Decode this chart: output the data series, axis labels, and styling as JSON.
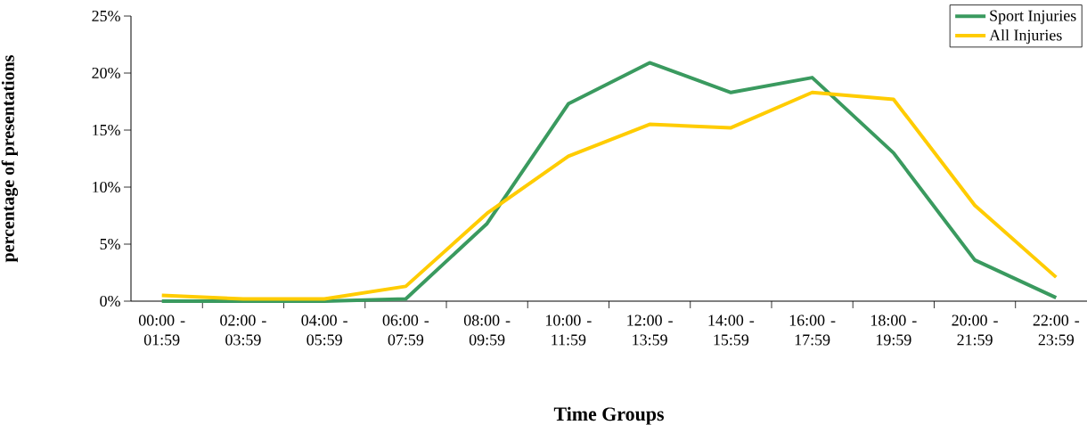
{
  "chart_data": {
    "type": "line",
    "xlabel": "Time Groups",
    "ylabel": "percentage of presentations",
    "categories": [
      "00:00 - 01:59",
      "02:00 - 03:59",
      "04:00 - 05:59",
      "06:00 - 07:59",
      "08:00 - 09:59",
      "10:00 - 11:59",
      "12:00 - 13:59",
      "14:00 - 15:59",
      "16:00 - 17:59",
      "18:00 - 19:59",
      "20:00 - 21:59",
      "22:00 - 23:59"
    ],
    "series": [
      {
        "name": "Sport Injuries",
        "color": "#3a9a5f",
        "values": [
          0,
          0,
          0,
          0.2,
          6.8,
          17.3,
          20.9,
          18.3,
          19.6,
          13.0,
          3.6,
          0.3
        ]
      },
      {
        "name": "All Injuries",
        "color": "#ffcc00",
        "values": [
          0.5,
          0.2,
          0.2,
          1.3,
          7.7,
          12.7,
          15.5,
          15.2,
          18.3,
          17.7,
          8.4,
          2.1
        ]
      }
    ],
    "ylim": [
      0,
      25
    ],
    "yticks": [
      {
        "value": 0,
        "label": "0%"
      },
      {
        "value": 5,
        "label": "5%"
      },
      {
        "value": 10,
        "label": "10%"
      },
      {
        "value": 15,
        "label": "15%"
      },
      {
        "value": 20,
        "label": "20%"
      },
      {
        "value": 25,
        "label": "25%"
      }
    ],
    "legend": "top right",
    "grid": false,
    "marker": "none",
    "line_style": "solid"
  }
}
